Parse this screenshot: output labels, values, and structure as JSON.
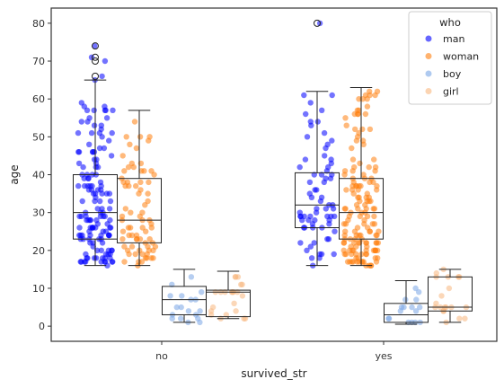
{
  "chart_data": {
    "type": "box",
    "overlay": "strip",
    "xlabel": "survived_str",
    "ylabel": "age",
    "categories": [
      "no",
      "yes"
    ],
    "ylim": [
      -4,
      84
    ],
    "yticks": [
      0,
      10,
      20,
      30,
      40,
      50,
      60,
      70,
      80
    ],
    "grid": false,
    "legend": {
      "title": "who",
      "placement": "top-right",
      "entries": [
        {
          "name": "man",
          "color": "#0000ff"
        },
        {
          "name": "woman",
          "color": "#ff7f0e"
        },
        {
          "name": "boy",
          "color": "#7aa6e6"
        },
        {
          "name": "girl",
          "color": "#f8b77e"
        }
      ]
    },
    "series": [
      {
        "name": "man",
        "boxes": [
          {
            "category": "no",
            "q1": 23,
            "median": 30,
            "q3": 40,
            "whisker_low": 16,
            "whisker_high": 65,
            "outliers": [
              66,
              70,
              71,
              74
            ]
          },
          {
            "category": "yes",
            "q1": 26,
            "median": 32,
            "q3": 40.5,
            "whisker_low": 16,
            "whisker_high": 62,
            "outliers": [
              80
            ]
          }
        ]
      },
      {
        "name": "woman",
        "boxes": [
          {
            "category": "no",
            "q1": 22,
            "median": 28,
            "q3": 39,
            "whisker_low": 16,
            "whisker_high": 57,
            "outliers": []
          },
          {
            "category": "yes",
            "q1": 23,
            "median": 30,
            "q3": 39,
            "whisker_low": 16,
            "whisker_high": 63,
            "outliers": []
          }
        ]
      },
      {
        "name": "boy",
        "boxes": [
          {
            "category": "no",
            "q1": 3,
            "median": 7,
            "q3": 10.5,
            "whisker_low": 1,
            "whisker_high": 15,
            "outliers": []
          },
          {
            "category": "yes",
            "q1": 1,
            "median": 3,
            "q3": 6,
            "whisker_low": 0.5,
            "whisker_high": 12,
            "outliers": []
          }
        ]
      },
      {
        "name": "girl",
        "boxes": [
          {
            "category": "no",
            "q1": 2.5,
            "median": 9,
            "q3": 9.5,
            "whisker_low": 2,
            "whisker_high": 14.5,
            "outliers": []
          },
          {
            "category": "yes",
            "q1": 4,
            "median": 5,
            "q3": 13,
            "whisker_low": 1,
            "whisker_high": 15,
            "outliers": []
          }
        ]
      }
    ]
  }
}
